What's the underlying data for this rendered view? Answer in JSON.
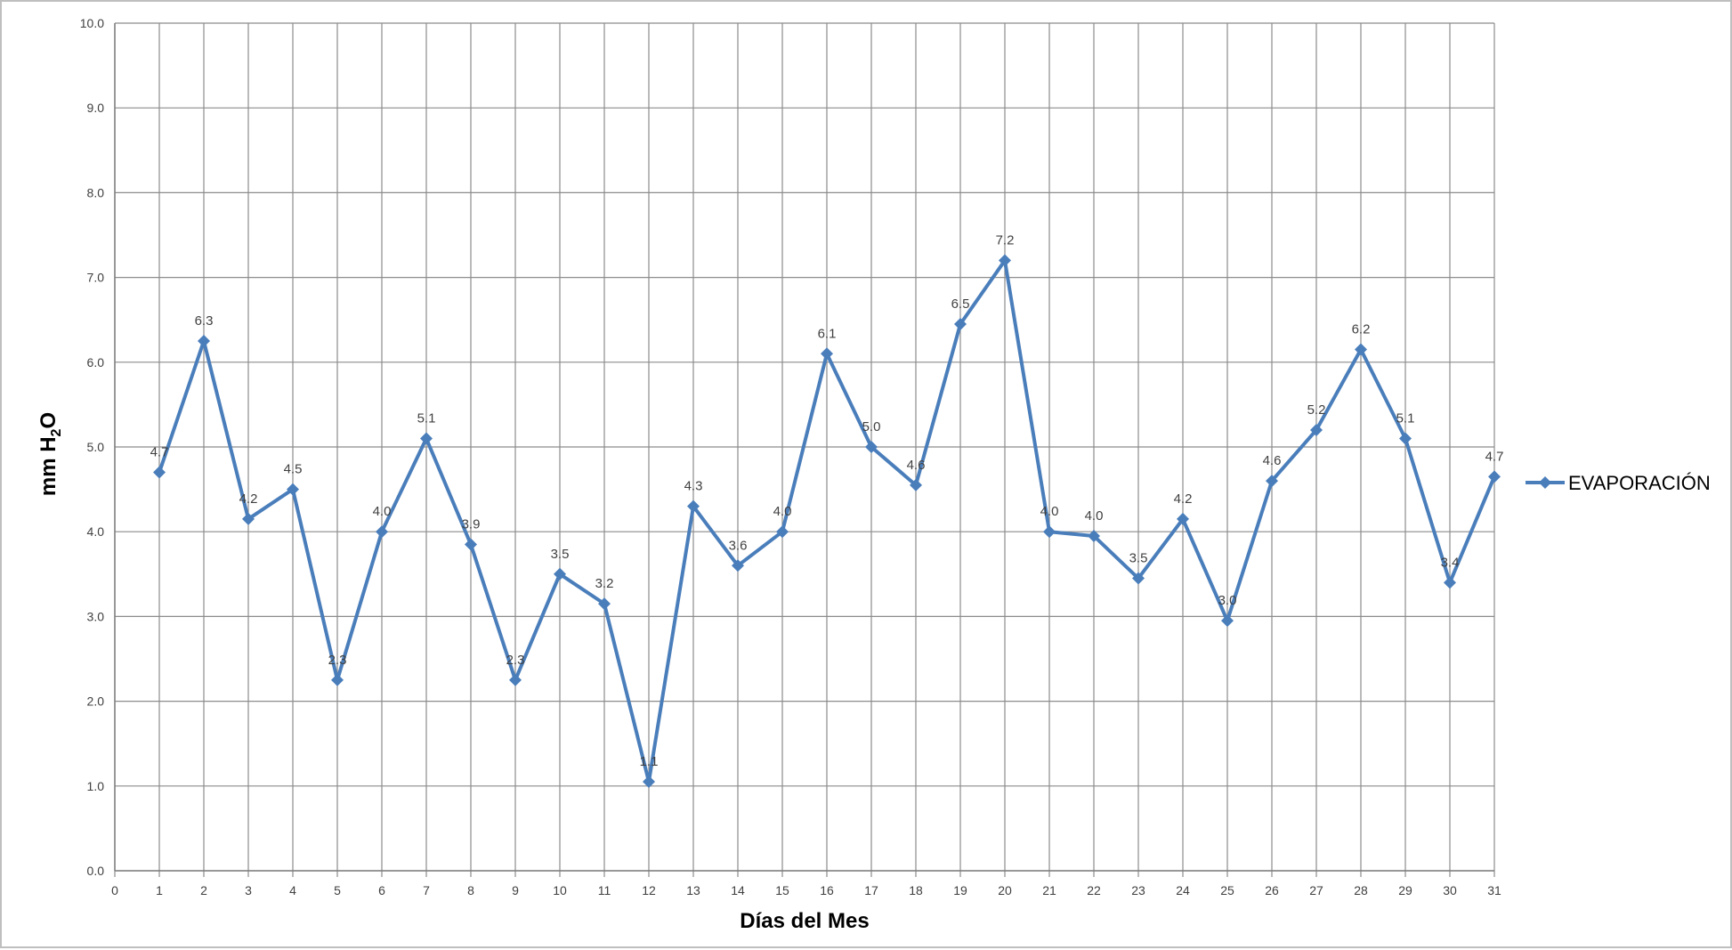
{
  "chart_data": {
    "type": "line",
    "title": "",
    "xlabel": "Días del Mes",
    "ylabel": {
      "prefix": "mm H",
      "sub": "2",
      "suffix": "O"
    },
    "x_ticks": [
      "0",
      "1",
      "2",
      "3",
      "4",
      "5",
      "6",
      "7",
      "8",
      "9",
      "10",
      "11",
      "12",
      "13",
      "14",
      "15",
      "16",
      "17",
      "18",
      "19",
      "20",
      "21",
      "22",
      "23",
      "24",
      "25",
      "26",
      "27",
      "28",
      "29",
      "30",
      "31"
    ],
    "y_ticks": [
      "0.0",
      "1.0",
      "2.0",
      "3.0",
      "4.0",
      "5.0",
      "6.0",
      "7.0",
      "8.0",
      "9.0",
      "10.0"
    ],
    "xlim": [
      0,
      31
    ],
    "ylim": [
      0,
      10
    ],
    "grid": true,
    "legend_position": "right",
    "series": [
      {
        "name": "EVAPORACIÓN",
        "color": "#4a7ebb",
        "marker": "diamond",
        "x": [
          1,
          2,
          3,
          4,
          5,
          6,
          7,
          8,
          9,
          10,
          11,
          12,
          13,
          14,
          15,
          16,
          17,
          18,
          19,
          20,
          21,
          22,
          23,
          24,
          25,
          26,
          27,
          28,
          29,
          30,
          31
        ],
        "values": [
          4.7,
          6.25,
          4.15,
          4.5,
          2.25,
          4.0,
          5.1,
          3.85,
          2.25,
          3.5,
          3.15,
          1.05,
          4.3,
          3.6,
          4.0,
          6.1,
          5.0,
          4.55,
          6.45,
          7.2,
          4.0,
          3.95,
          3.45,
          4.15,
          2.95,
          4.6,
          5.2,
          6.15,
          5.1,
          3.4,
          4.65
        ],
        "data_labels": [
          "4.7",
          "6.3",
          "4.2",
          "4.5",
          "2.3",
          "4.0",
          "5.1",
          "3.9",
          "2.3",
          "3.5",
          "3.2",
          "1.1",
          "4.3",
          "3.6",
          "4.0",
          "6.1",
          "5.0",
          "4.6",
          "6.5",
          "7.2",
          "4.0",
          "4.0",
          "3.5",
          "4.2",
          "3.0",
          "4.6",
          "5.2",
          "6.2",
          "5.1",
          "3.4",
          "4.7"
        ]
      }
    ]
  }
}
